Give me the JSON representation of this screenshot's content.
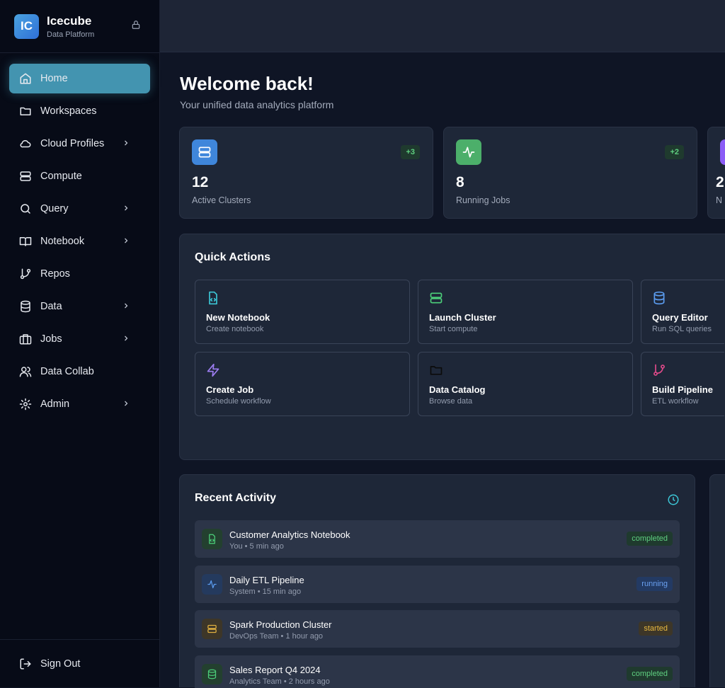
{
  "brand": {
    "logo": "IC",
    "name": "Icecube",
    "subtitle": "Data Platform"
  },
  "nav": [
    {
      "label": "Home",
      "icon": "home-icon",
      "active": true
    },
    {
      "label": "Workspaces",
      "icon": "folder-icon"
    },
    {
      "label": "Cloud Profiles",
      "icon": "cloud-icon",
      "chevron": true
    },
    {
      "label": "Compute",
      "icon": "server-icon"
    },
    {
      "label": "Query",
      "icon": "search-icon",
      "chevron": true
    },
    {
      "label": "Notebook",
      "icon": "book-icon",
      "chevron": true
    },
    {
      "label": "Repos",
      "icon": "git-branch-icon"
    },
    {
      "label": "Data",
      "icon": "database-icon",
      "chevron": true
    },
    {
      "label": "Jobs",
      "icon": "briefcase-icon",
      "chevron": true
    },
    {
      "label": "Data Collab",
      "icon": "users-icon"
    },
    {
      "label": "Admin",
      "icon": "gear-icon",
      "chevron": true
    }
  ],
  "signout": "Sign Out",
  "welcome": {
    "title": "Welcome back!",
    "subtitle": "Your unified data analytics platform"
  },
  "stats": [
    {
      "value": "12",
      "label": "Active Clusters",
      "delta": "+3",
      "color": "#3f86db"
    },
    {
      "value": "8",
      "label": "Running Jobs",
      "delta": "+2",
      "color": "#4caf6a"
    },
    {
      "value": "2",
      "label": "N",
      "color": "#8b5cf6"
    }
  ],
  "quick_actions": {
    "title": "Quick Actions",
    "items": [
      {
        "title": "New Notebook",
        "desc": "Create notebook",
        "color": "#3cc6d6"
      },
      {
        "title": "Launch Cluster",
        "desc": "Start compute",
        "color": "#4ccf7a"
      },
      {
        "title": "Query Editor",
        "desc": "Run SQL queries",
        "color": "#5b9cf0"
      },
      {
        "title": "Create Job",
        "desc": "Schedule workflow",
        "color": "#9b7cf0"
      },
      {
        "title": "Data Catalog",
        "desc": "Browse data",
        "color": "#0b0b0b"
      },
      {
        "title": "Build Pipeline",
        "desc": "ETL workflow",
        "color": "#e04a8a"
      }
    ]
  },
  "recent": {
    "title": "Recent Activity",
    "items": [
      {
        "title": "Customer Analytics Notebook",
        "meta": "You • 5 min ago",
        "status": "completed"
      },
      {
        "title": "Daily ETL Pipeline",
        "meta": "System • 15 min ago",
        "status": "running"
      },
      {
        "title": "Spark Production Cluster",
        "meta": "DevOps Team • 1 hour ago",
        "status": "started"
      },
      {
        "title": "Sales Report Q4 2024",
        "meta": "Analytics Team • 2 hours ago",
        "status": "completed"
      }
    ]
  }
}
